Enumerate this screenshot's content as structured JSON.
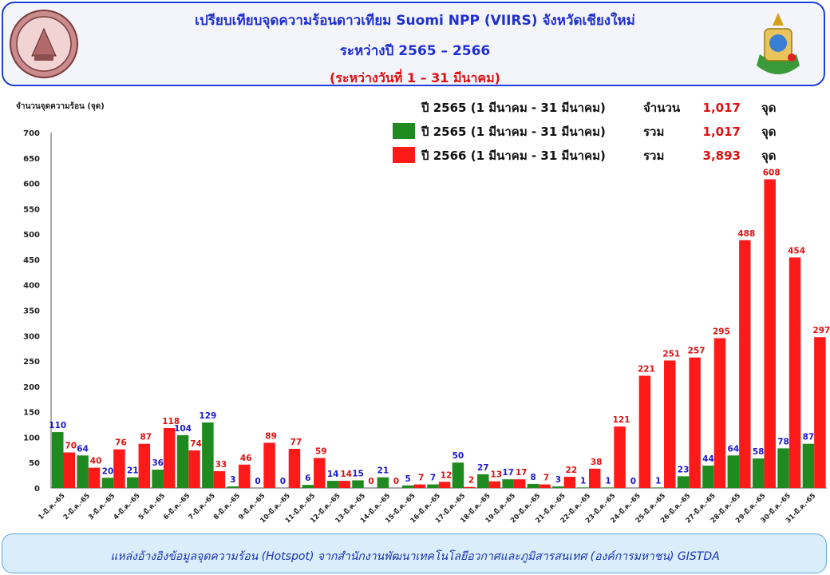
{
  "header": {
    "title_line1": "เปรียบเทียบจุดความร้อนดาวเทียม  Suomi NPP (VIIRS) จังหวัดเชียงใหม่",
    "title_line2": "ระหว่างปี 2565 – 2566",
    "title_line3": "(ระหว่างวันที่  1 – 31  มีนาคม)"
  },
  "summary": [
    {
      "label": "ปี 2565 (1 มีนาคม - 31 มีนาคม)",
      "word": "จำนวน",
      "value": "1,017",
      "unit": "จุด",
      "swatch": ""
    },
    {
      "label": "ปี 2565 (1 มีนาคม - 31 มีนาคม)",
      "word": "รวม",
      "value": "1,017",
      "unit": "จุด",
      "swatch": "#1f8a1f"
    },
    {
      "label": "ปี 2566 (1 มีนาคม - 31 มีนาคม)",
      "word": "รวม",
      "value": "3,893",
      "unit": "จุด",
      "swatch": "#ff1a1a"
    }
  ],
  "chart_data": {
    "type": "bar",
    "ylabel": "จำนวนจุดความร้อน (จุด)",
    "ylim": [
      0,
      700
    ],
    "yticks": [
      0,
      50,
      100,
      150,
      200,
      250,
      300,
      350,
      400,
      450,
      500,
      550,
      600,
      650,
      700
    ],
    "categories": [
      "1-มี.ค.-65",
      "2-มี.ค.-65",
      "3-มี.ค.-65",
      "4-มี.ค.-65",
      "5-มี.ค.-65",
      "6-มี.ค.-65",
      "7-มี.ค.-65",
      "8-มี.ค.-65",
      "9-มี.ค.-65",
      "10-มี.ค.-65",
      "11-มี.ค.-65",
      "12-มี.ค.-65",
      "13-มี.ค.-65",
      "14-มี.ค.-65",
      "15-มี.ค.-65",
      "16-มี.ค.-65",
      "17-มี.ค.-65",
      "18-มี.ค.-65",
      "19-มี.ค.-65",
      "20-มี.ค.-65",
      "21-มี.ค.-65",
      "22-มี.ค.-65",
      "23-มี.ค.-65",
      "24-มี.ค.-65",
      "25-มี.ค.-65",
      "26-มี.ค.-65",
      "27-มี.ค.-65",
      "28-มี.ค.-65",
      "29-มี.ค.-65",
      "30-มี.ค.-65",
      "31-มี.ค.-65"
    ],
    "series": [
      {
        "name": "ปี 2565 (1 มีนาคม - 31 มีนาคม)",
        "color": "#1f8a1f",
        "label_color": "#1a1ad0",
        "values": [
          110,
          64,
          20,
          21,
          36,
          104,
          129,
          3,
          0,
          0,
          6,
          14,
          15,
          21,
          5,
          7,
          50,
          27,
          17,
          8,
          3,
          1,
          1,
          0,
          1,
          23,
          44,
          64,
          58,
          78,
          87
        ]
      },
      {
        "name": "ปี 2566 (1 มีนาคม - 31 มีนาคม)",
        "color": "#ff1a1a",
        "label_color": "#e01010",
        "values": [
          70,
          40,
          76,
          87,
          118,
          74,
          33,
          46,
          89,
          77,
          59,
          14,
          0,
          0,
          7,
          12,
          2,
          13,
          17,
          7,
          22,
          38,
          121,
          221,
          251,
          257,
          295,
          488,
          608,
          454,
          297
        ]
      }
    ]
  },
  "footer": {
    "source": "แหล่งอ้างอิงข้อมูลจุดความร้อน (Hotspot)  จากสำนักงานพัฒนาเทคโนโลยีอวกาศและภูมิสารสนเทศ  (องค์การมหาชน)  GISTDA"
  },
  "icons": [
    "provincial-seal-icon",
    "agency-emblem-icon"
  ]
}
